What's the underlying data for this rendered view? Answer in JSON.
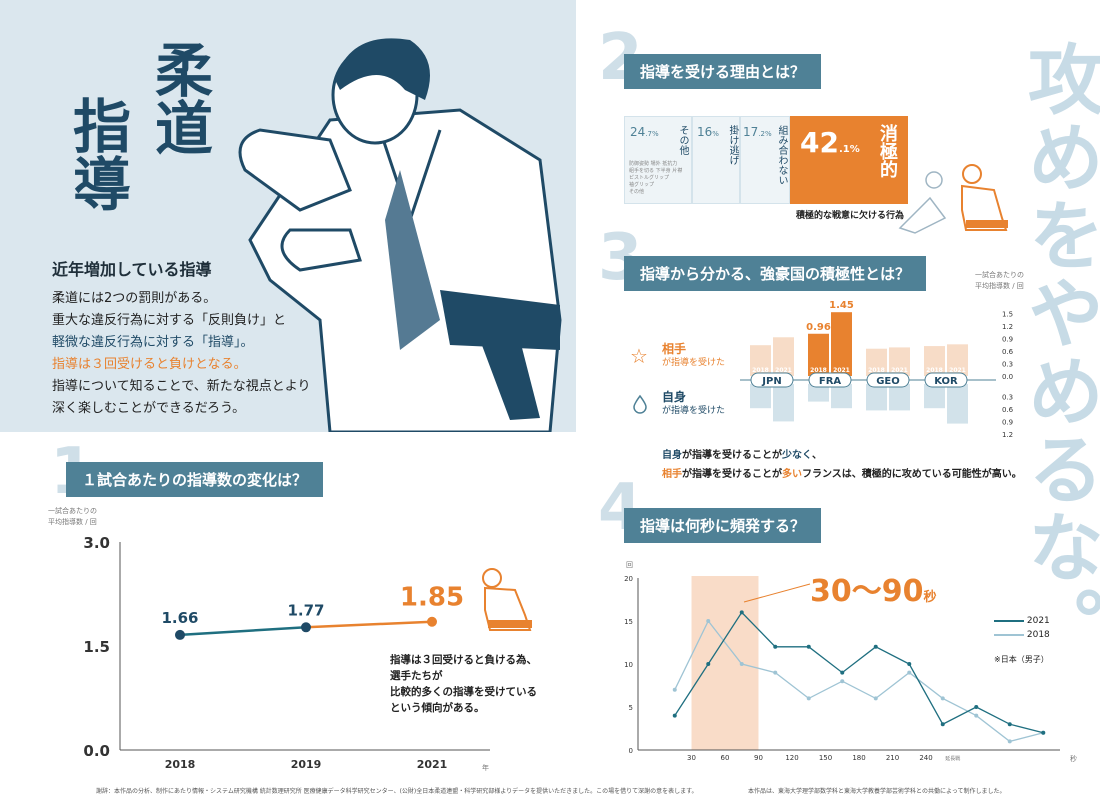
{
  "hero": {
    "title_1": "柔道",
    "title_2": "指導",
    "subheading": "近年増加している指導",
    "body": [
      "柔道には2つの罰則がある。",
      "重大な違反行為に対する「反則負け」と",
      "軽微な違反行為に対する「指導」。",
      "指導は３回受けると負けとなる。",
      "指導について知ることで、新たな視点とより",
      "深く楽しむことができるだろう。"
    ]
  },
  "slogan": "攻めをやめるな。",
  "section1": {
    "number": "1",
    "label": "１試合あたりの指導数の変化は？",
    "unit_line1": "一試合あたりの",
    "unit_line2": "平均指導数 / 回",
    "xunit": "年",
    "note": [
      "指導は３回受けると負ける為、",
      "選手たちが",
      "比較的多くの指導を受けている",
      "という傾向がある。"
    ]
  },
  "section2": {
    "number": "2",
    "label": "指導を受ける理由とは？",
    "items": [
      {
        "pct": "24",
        "dec": ".7%",
        "name": "その他"
      },
      {
        "pct": "16",
        "dec": "%",
        "name": "掛け逃げ"
      },
      {
        "pct": "17",
        "dec": ".2%",
        "name": "組み合わない"
      },
      {
        "pct": "42",
        "dec": ".1%",
        "name": "消極的"
      }
    ],
    "other_details": [
      "防御姿勢",
      "場外",
      "抵抗力",
      "組手を切る",
      "下半身",
      "片襟",
      "ピストルグリップ",
      "袖グリップ",
      "その他"
    ],
    "caption": "積極的な戦意に欠ける行為"
  },
  "section3": {
    "number": "3",
    "label": "指導から分かる、強豪国の積極性とは？",
    "unit_line1": "一試合あたりの",
    "unit_line2": "平均指導数 / 回",
    "opp_title": "相手",
    "opp_sub": "が指導を受けた",
    "self_title": "自身",
    "self_sub": "が指導を受けた",
    "conclusion_1a": "自身",
    "conclusion_1b": "が指導を受けることが",
    "conclusion_1c": "少なく",
    "conclusion_1d": "、",
    "conclusion_2a": "相手",
    "conclusion_2b": "が指導を受けることが",
    "conclusion_2c": "多い",
    "conclusion_2d": "フランスは、積極的に攻めている可能性が高い。",
    "label_2018": "2018",
    "label_2021": "2021"
  },
  "section4": {
    "number": "4",
    "label": "指導は何秒に頻発する？",
    "y_unit": "回",
    "x_unit": "秒",
    "ext_label": "延長戦",
    "callout": "30〜90",
    "callout_unit": "秒",
    "note": "※日本（男子）"
  },
  "footer": {
    "left": "謝辞：本作品の分析、制作にあたり情報・システム研究機構 統計数理研究所 医療健康データ科学研究センター、(公財)全日本柔道連盟・科学研究部様よりデータを提供いただきました。この場を借りて深謝の意を表します。",
    "right": "本作品は、東海大学理学部数学科と東海大学教養学部芸術学科との共働によって制作しました。"
  },
  "colors": {
    "navy": "#1f4a66",
    "teal": "#4f8196",
    "orange": "#e8822f",
    "light_blue": "#9fc4d4",
    "hero_bg": "#dbe7ee"
  },
  "chart_data": [
    {
      "type": "line",
      "x": [
        "2018",
        "2019",
        "2021"
      ],
      "series": [
        {
          "values": [
            1.66,
            1.77,
            1.85
          ]
        }
      ],
      "yticks": [
        "0.0",
        "1.5",
        "3.0"
      ],
      "ylim": [
        0,
        3.0
      ]
    },
    {
      "type": "bar",
      "categories": [
        "JPN",
        "FRA",
        "GEO",
        "KOR"
      ],
      "series": [
        {
          "name": "相手 2018",
          "values": [
            0.7,
            0.96,
            0.62,
            0.68
          ]
        },
        {
          "name": "相手 2021",
          "values": [
            0.88,
            1.45,
            0.65,
            0.72
          ]
        },
        {
          "name": "自身 2018",
          "values": [
            0.55,
            0.4,
            0.6,
            0.55
          ]
        },
        {
          "name": "自身 2021",
          "values": [
            0.85,
            0.55,
            0.6,
            0.9
          ]
        }
      ],
      "labeled_values": [
        "0.96",
        "1.45"
      ],
      "yticks_up": [
        "1.5",
        "1.2",
        "0.9",
        "0.6",
        "0.3",
        "0.0"
      ],
      "yticks_down": [
        "0.3",
        "0.6",
        "0.9",
        "1.2"
      ]
    },
    {
      "type": "line",
      "x": [
        15,
        45,
        75,
        105,
        135,
        165,
        195,
        225,
        255,
        285,
        315,
        345
      ],
      "xticks": [
        "30",
        "60",
        "90",
        "120",
        "150",
        "180",
        "210",
        "240"
      ],
      "yticks": [
        "0",
        "5",
        "10",
        "15",
        "20"
      ],
      "ylim": [
        0,
        20
      ],
      "highlight_range": [
        30,
        90
      ],
      "series": [
        {
          "name": "2021",
          "values": [
            4,
            10,
            16,
            12,
            12,
            9,
            12,
            10,
            3,
            5,
            3,
            2
          ]
        },
        {
          "name": "2018",
          "values": [
            7,
            15,
            10,
            9,
            6,
            8,
            6,
            9,
            6,
            4,
            1,
            2
          ]
        }
      ]
    }
  ]
}
